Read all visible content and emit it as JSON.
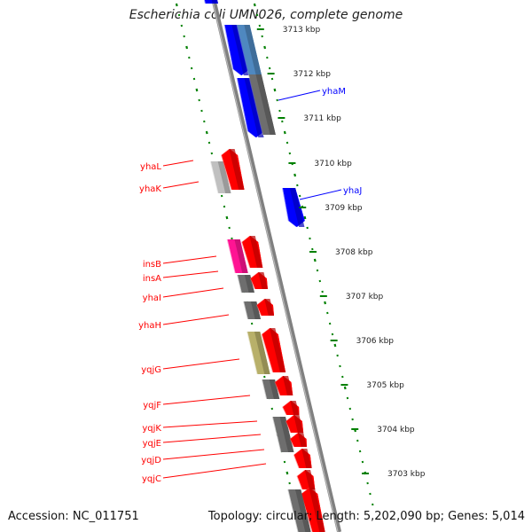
{
  "title": "Escherichia coli UMN026, complete genome",
  "footer": {
    "accession": "Accession: NC_011751",
    "topology": "Topology: circular; Length: 5,202,090 bp; Genes: 5,014"
  },
  "colors": {
    "forward_gene": "#ff0000",
    "reverse_gene": "#0000ff",
    "backbone": "#808080",
    "ticks": "#008000",
    "pseudo_gray": "#6e6e6e",
    "light_gray": "#c0c0c0",
    "magenta": "#ff1493",
    "olive": "#b8b06a",
    "steel_blue": "#4f88c0"
  },
  "ruler": [
    "3713 kbp",
    "3712 kbp",
    "3711 kbp",
    "3710 kbp",
    "3709 kbp",
    "3708 kbp",
    "3707 kbp",
    "3706 kbp",
    "3705 kbp",
    "3704 kbp",
    "3703 kbp"
  ],
  "labels_forward": [
    "yhaL",
    "yhaK",
    "insB",
    "insA",
    "yhaI",
    "yhaH",
    "yqjG",
    "yqjF",
    "yqjK",
    "yqjE",
    "yqjD",
    "yqjC"
  ],
  "labels_reverse": [
    "yhaM",
    "yhaJ"
  ]
}
